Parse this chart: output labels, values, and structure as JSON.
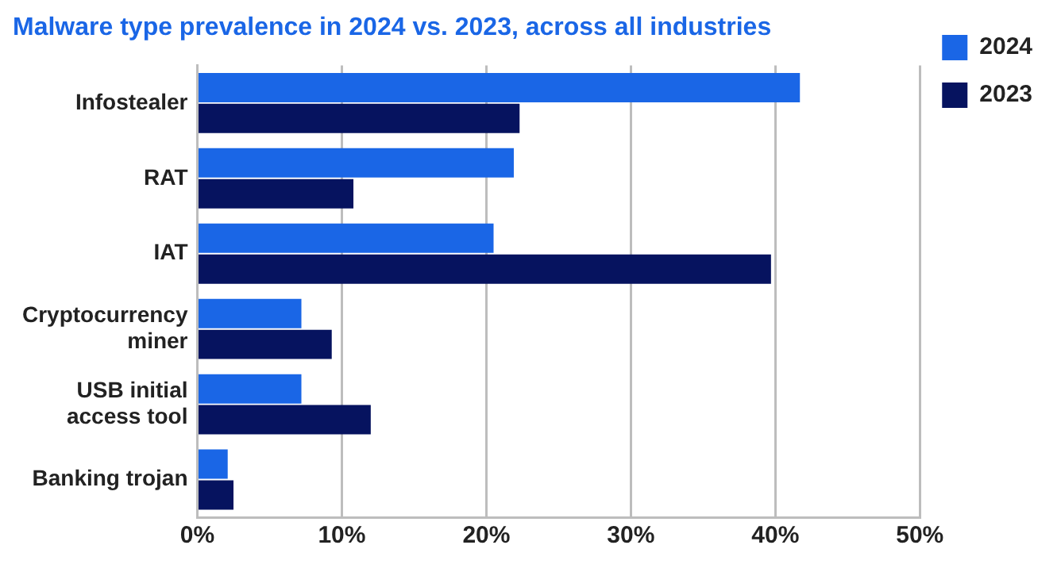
{
  "chart_data": {
    "type": "bar",
    "orientation": "horizontal",
    "title": "Malware type prevalence in 2024 vs. 2023, across all industries",
    "categories": [
      "Infostealer",
      "RAT",
      "IAT",
      "Cryptocurrency miner",
      "USB initial access tool",
      "Banking trojan"
    ],
    "series": [
      {
        "name": "2024",
        "color": "#1a66e6",
        "values": [
          41.7,
          21.9,
          20.5,
          7.2,
          7.2,
          2.1
        ]
      },
      {
        "name": "2023",
        "color": "#06135f",
        "values": [
          22.3,
          10.8,
          39.7,
          9.3,
          12.0,
          2.5
        ]
      }
    ],
    "xlim": [
      0,
      50
    ],
    "xticks": [
      {
        "value": 0,
        "label": "0%"
      },
      {
        "value": 10,
        "label": "10%"
      },
      {
        "value": 20,
        "label": "20%"
      },
      {
        "value": 30,
        "label": "30%"
      },
      {
        "value": 40,
        "label": "40%"
      },
      {
        "value": 50,
        "label": "50%"
      }
    ],
    "grid": "x",
    "legend": "top right"
  }
}
